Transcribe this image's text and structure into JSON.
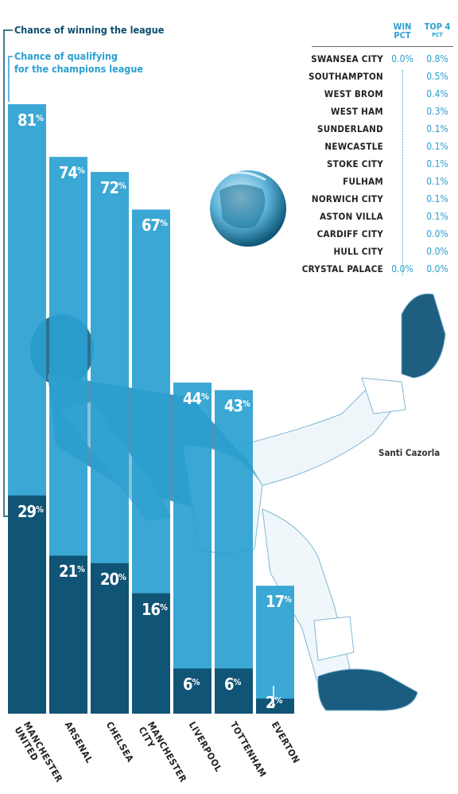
{
  "legend": {
    "win": "Chance of winning the league",
    "top4_line1": "Chance of qualifying",
    "top4_line2": "for the champions league"
  },
  "table": {
    "header_win": [
      "WIN",
      "PCT"
    ],
    "header_top4": [
      "TOP 4",
      "PCT"
    ],
    "rows": [
      {
        "team": "SWANSEA CITY",
        "win": "0.0%",
        "top4": "0.8%"
      },
      {
        "team": "SOUTHAMPTON",
        "win": "",
        "top4": "0.5%"
      },
      {
        "team": "WEST BROM",
        "win": "",
        "top4": "0.4%"
      },
      {
        "team": "WEST HAM",
        "win": "",
        "top4": "0.3%"
      },
      {
        "team": "SUNDERLAND",
        "win": "",
        "top4": "0.1%"
      },
      {
        "team": "NEWCASTLE",
        "win": "",
        "top4": "0.1%"
      },
      {
        "team": "STOKE CITY",
        "win": "",
        "top4": "0.1%"
      },
      {
        "team": "FULHAM",
        "win": "",
        "top4": "0.1%"
      },
      {
        "team": "NORWICH CITY",
        "win": "",
        "top4": "0.1%"
      },
      {
        "team": "ASTON VILLA",
        "win": "",
        "top4": "0.1%"
      },
      {
        "team": "CARDIFF CITY",
        "win": "",
        "top4": "0.0%"
      },
      {
        "team": "HULL CITY",
        "win": "",
        "top4": "0.0%"
      },
      {
        "team": "CRYSTAL PALACE",
        "win": "0.0%",
        "top4": "0.0%"
      }
    ]
  },
  "caption": "Santi Cazorla",
  "colors": {
    "win": "#0d4d6e",
    "top4": "#2a9fd0",
    "text": "#222222"
  },
  "chart_data": {
    "type": "bar",
    "categories": [
      "MANCHESTER UNITED",
      "ARSENAL",
      "CHELSEA",
      "MANCHESTER CITY",
      "LIVERPOOL",
      "TOTTENHAM",
      "EVERTON"
    ],
    "series": [
      {
        "name": "Chance of winning the league",
        "values": [
          29,
          21,
          20,
          16,
          6,
          6,
          2
        ]
      },
      {
        "name": "Chance of qualifying for the champions league",
        "values": [
          81,
          74,
          72,
          67,
          44,
          43,
          17
        ]
      }
    ],
    "ylim": [
      0,
      100
    ],
    "legend": "top-left"
  }
}
